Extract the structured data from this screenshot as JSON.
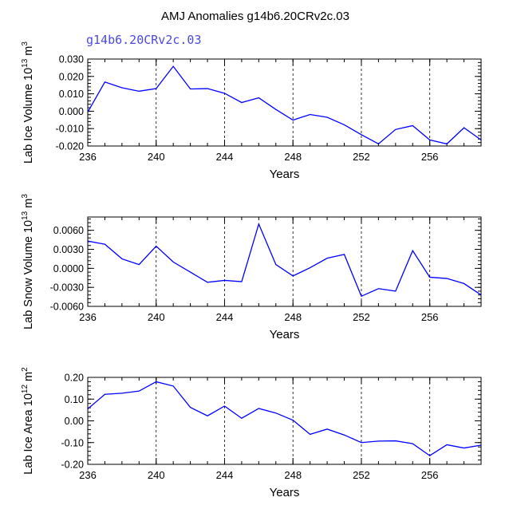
{
  "title": "AMJ Anomalies g14b6.20CRv2c.03",
  "chart_data": [
    {
      "type": "line",
      "case_label": "g14b6.20CRv2c.03",
      "ylabel_main": "Lab Ice Volume 10",
      "ylabel_exp": "13",
      "ylabel_unit": "m",
      "ylabel_unit_exp": "3",
      "xlabel": "Years",
      "xlim": [
        236,
        259
      ],
      "ylim": [
        -0.02,
        0.03
      ],
      "xticks": [
        236,
        240,
        244,
        248,
        252,
        256
      ],
      "yticks": [
        -0.02,
        -0.01,
        0.0,
        0.01,
        0.02,
        0.03
      ],
      "ytick_labels": [
        "-0.020",
        "-0.010",
        "0.000",
        "0.010",
        "0.020",
        "0.030"
      ],
      "x": [
        236,
        237,
        238,
        239,
        240,
        241,
        242,
        243,
        244,
        245,
        246,
        247,
        248,
        249,
        250,
        251,
        252,
        253,
        254,
        255,
        256,
        257,
        258,
        259
      ],
      "y": [
        -0.0005,
        0.0168,
        0.0135,
        0.0115,
        0.013,
        0.0258,
        0.0128,
        0.013,
        0.0103,
        0.005,
        0.0077,
        0.001,
        -0.0051,
        -0.0019,
        -0.0035,
        -0.0078,
        -0.0135,
        -0.0188,
        -0.0105,
        -0.0083,
        -0.0165,
        -0.0188,
        -0.0095,
        -0.0165
      ],
      "color": "#0000ff"
    },
    {
      "type": "line",
      "ylabel_main": "Lab Snow Volume 10",
      "ylabel_exp": "13",
      "ylabel_unit": "m",
      "ylabel_unit_exp": "3",
      "xlabel": "Years",
      "xlim": [
        236,
        259
      ],
      "ylim": [
        -0.006,
        0.0081
      ],
      "xticks": [
        236,
        240,
        244,
        248,
        252,
        256
      ],
      "yticks": [
        -0.006,
        -0.003,
        0.0,
        0.003,
        0.006
      ],
      "ytick_labels": [
        "-0.0060",
        "-0.0030",
        "0.0000",
        "0.0030",
        "0.0060"
      ],
      "x": [
        236,
        237,
        238,
        239,
        240,
        241,
        242,
        243,
        244,
        245,
        246,
        247,
        248,
        249,
        250,
        251,
        252,
        253,
        254,
        255,
        256,
        257,
        258,
        259
      ],
      "y": [
        0.0043,
        0.0038,
        0.0015,
        0.0006,
        0.0035,
        0.001,
        -0.0006,
        -0.0022,
        -0.0019,
        -0.0021,
        0.007,
        0.0006,
        -0.0012,
        0.0001,
        0.0016,
        0.0022,
        -0.0044,
        -0.0032,
        -0.0036,
        0.0028,
        -0.0014,
        -0.0016,
        -0.0024,
        -0.0042
      ],
      "color": "#0000ff"
    },
    {
      "type": "line",
      "ylabel_main": "Lab Ice Area 10",
      "ylabel_exp": "12",
      "ylabel_unit": "m",
      "ylabel_unit_exp": "2",
      "xlabel": "Years",
      "xlim": [
        236,
        259
      ],
      "ylim": [
        -0.2,
        0.2
      ],
      "xticks": [
        236,
        240,
        244,
        248,
        252,
        256
      ],
      "yticks": [
        -0.2,
        -0.1,
        0.0,
        0.1,
        0.2
      ],
      "ytick_labels": [
        "-0.20",
        "-0.10",
        "0.00",
        "0.10",
        "0.20"
      ],
      "x": [
        236,
        237,
        238,
        239,
        240,
        241,
        242,
        243,
        244,
        245,
        246,
        247,
        248,
        249,
        250,
        251,
        252,
        253,
        254,
        255,
        256,
        257,
        258,
        259
      ],
      "y": [
        0.055,
        0.122,
        0.127,
        0.137,
        0.18,
        0.16,
        0.062,
        0.023,
        0.068,
        0.012,
        0.057,
        0.036,
        0.003,
        -0.062,
        -0.038,
        -0.065,
        -0.1,
        -0.093,
        -0.092,
        -0.105,
        -0.16,
        -0.11,
        -0.125,
        -0.112
      ],
      "color": "#0000ff"
    }
  ]
}
